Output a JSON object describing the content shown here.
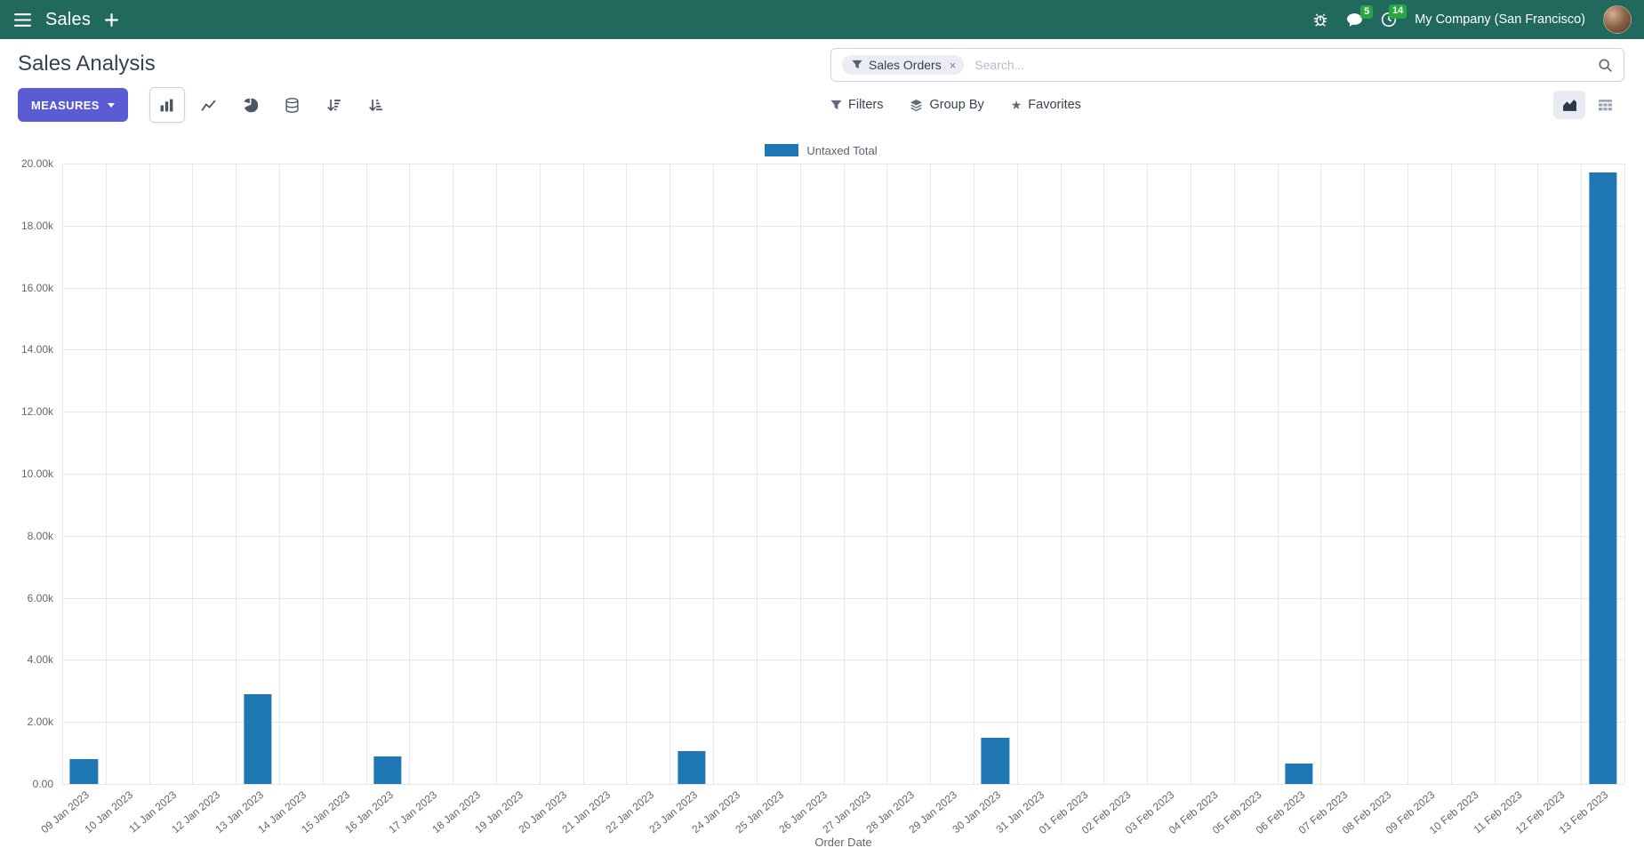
{
  "colors": {
    "navbar_bg": "#21685d",
    "primary": "#5c5bd6",
    "bar": "#1f77b4",
    "badge": "#28a745"
  },
  "navbar": {
    "app_name": "Sales",
    "company": "My Company (San Francisco)",
    "messages_badge": "5",
    "activities_badge": "14"
  },
  "control_panel": {
    "title": "Sales Analysis",
    "measures_label": "MEASURES",
    "filters_label": "Filters",
    "group_by_label": "Group By",
    "favorites_label": "Favorites"
  },
  "search": {
    "facet_label": "Sales Orders",
    "placeholder": "Search...",
    "remove_glyph": "×"
  },
  "glyphs": {
    "star": "★"
  },
  "chart_data": {
    "type": "bar",
    "title": "",
    "legend_position": "top",
    "grid": true,
    "xlabel": "Order Date",
    "ylim": [
      0,
      20000
    ],
    "ytick_step": 2000,
    "ytick_labels": [
      "0.00",
      "2.00k",
      "4.00k",
      "6.00k",
      "8.00k",
      "10.00k",
      "12.00k",
      "14.00k",
      "16.00k",
      "18.00k",
      "20.00k"
    ],
    "categories": [
      "09 Jan 2023",
      "10 Jan 2023",
      "11 Jan 2023",
      "12 Jan 2023",
      "13 Jan 2023",
      "14 Jan 2023",
      "15 Jan 2023",
      "16 Jan 2023",
      "17 Jan 2023",
      "18 Jan 2023",
      "19 Jan 2023",
      "20 Jan 2023",
      "21 Jan 2023",
      "22 Jan 2023",
      "23 Jan 2023",
      "24 Jan 2023",
      "25 Jan 2023",
      "26 Jan 2023",
      "27 Jan 2023",
      "28 Jan 2023",
      "29 Jan 2023",
      "30 Jan 2023",
      "31 Jan 2023",
      "01 Feb 2023",
      "02 Feb 2023",
      "03 Feb 2023",
      "04 Feb 2023",
      "05 Feb 2023",
      "06 Feb 2023",
      "07 Feb 2023",
      "08 Feb 2023",
      "09 Feb 2023",
      "10 Feb 2023",
      "11 Feb 2023",
      "12 Feb 2023",
      "13 Feb 2023"
    ],
    "series": [
      {
        "name": "Untaxed Total",
        "color": "#1f77b4",
        "values": [
          800,
          0,
          0,
          0,
          2900,
          0,
          0,
          900,
          0,
          0,
          0,
          0,
          0,
          0,
          1050,
          0,
          0,
          0,
          0,
          0,
          0,
          1500,
          0,
          0,
          0,
          0,
          0,
          0,
          650,
          0,
          0,
          0,
          0,
          0,
          0,
          19700
        ]
      }
    ]
  }
}
